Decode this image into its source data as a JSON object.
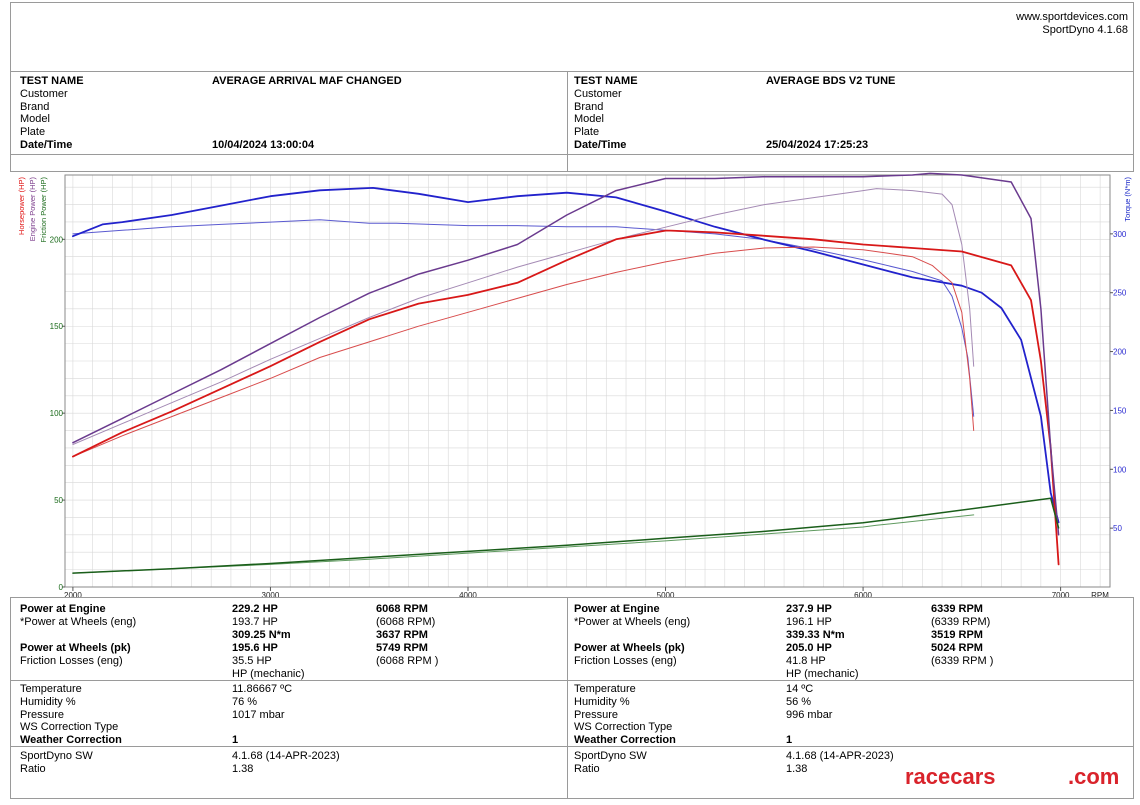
{
  "header": {
    "website": "www.sportdevices.com",
    "software": "SportDyno 4.1.68"
  },
  "tests": [
    {
      "labels": {
        "test_name": "TEST NAME",
        "customer": "Customer",
        "brand": "Brand",
        "model": "Model",
        "plate": "Plate",
        "datetime": "Date/Time"
      },
      "test_name": "AVERAGE ARRIVAL MAF CHANGED",
      "datetime": "10/04/2024 13:00:04",
      "results": {
        "power_engine_label": "Power at Engine",
        "power_engine_hp": "229.2 HP",
        "power_engine_rpm": "6068 RPM",
        "power_wheels_eng_label": "*Power at Wheels (eng)",
        "power_wheels_eng_hp": "193.7 HP",
        "power_wheels_eng_rpm": "(6068 RPM)",
        "torque": "309.25 N*m",
        "torque_rpm": "3637 RPM",
        "power_wheels_pk_label": "Power at Wheels (pk)",
        "power_wheels_pk_hp": "195.6 HP",
        "power_wheels_pk_rpm": "5749 RPM",
        "friction_label": "Friction Losses (eng)",
        "friction_hp": "35.5 HP",
        "friction_rpm": "(6068 RPM )",
        "hp_mech": "HP (mechanic)"
      },
      "conditions": {
        "temperature_label": "Temperature",
        "temperature": "11.86667 ºC",
        "humidity_label": "Humidity %",
        "humidity": "76 %",
        "pressure_label": "Pressure",
        "pressure": "1017 mbar",
        "ws_label": "WS Correction Type",
        "weather_label": "Weather Correction",
        "weather": "1"
      },
      "software": {
        "sw_label": "SportDyno SW",
        "sw": "4.1.68 (14-APR-2023)",
        "ratio_label": "Ratio",
        "ratio": "1.38"
      }
    },
    {
      "labels": {
        "test_name": "TEST NAME",
        "customer": "Customer",
        "brand": "Brand",
        "model": "Model",
        "plate": "Plate",
        "datetime": "Date/Time"
      },
      "test_name": "AVERAGE BDS V2 TUNE",
      "datetime": "25/04/2024 17:25:23",
      "results": {
        "power_engine_label": "Power at Engine",
        "power_engine_hp": "237.9 HP",
        "power_engine_rpm": "6339 RPM",
        "power_wheels_eng_label": "*Power at Wheels (eng)",
        "power_wheels_eng_hp": "196.1 HP",
        "power_wheels_eng_rpm": "(6339 RPM)",
        "torque": "339.33 N*m",
        "torque_rpm": "3519 RPM",
        "power_wheels_pk_label": "Power at Wheels (pk)",
        "power_wheels_pk_hp": "205.0 HP",
        "power_wheels_pk_rpm": "5024 RPM",
        "friction_label": "Friction Losses (eng)",
        "friction_hp": "41.8 HP",
        "friction_rpm": "(6339 RPM )",
        "hp_mech": "HP (mechanic)"
      },
      "conditions": {
        "temperature_label": "Temperature",
        "temperature": "14 ºC",
        "humidity_label": "Humidity %",
        "humidity": "56 %",
        "pressure_label": "Pressure",
        "pressure": "996 mbar",
        "ws_label": "WS Correction Type",
        "weather_label": "Weather Correction",
        "weather": "1"
      },
      "software": {
        "sw_label": "SportDyno SW",
        "sw": "4.1.68 (14-APR-2023)",
        "ratio_label": "Ratio",
        "ratio": "1.38"
      }
    }
  ],
  "logo": {
    "part1": "racecars",
    "part2": ".com"
  },
  "colors": {
    "hp": "#e01010",
    "engine_power": "#7a3a8a",
    "friction": "#1a6a1a",
    "torque": "#1a28c8",
    "grid": "#d8d8d8"
  },
  "chart_data": {
    "type": "line",
    "xlabel": "RPM",
    "xlim": [
      1960,
      7250
    ],
    "x_ticks": [
      2000,
      3000,
      4000,
      5000,
      6000,
      7000
    ],
    "ylim_left": [
      0,
      237
    ],
    "left_ticks": [
      0,
      50,
      100,
      150,
      200
    ],
    "ylim_right": [
      0,
      350
    ],
    "right_ticks": [
      50,
      100,
      150,
      200,
      250,
      300
    ],
    "left_axis_labels": [
      "Horsepower (HP)",
      "Engine Power (HP)",
      "Friction Power (HP)"
    ],
    "right_axis_label": "Torque (N*m)",
    "grid": true,
    "series": [
      {
        "test": 1,
        "axis": "right",
        "color": "#5a5ad0",
        "width": 1,
        "x": [
          2000,
          2250,
          2500,
          2750,
          3000,
          3250,
          3500,
          3637,
          4000,
          4250,
          4500,
          4750,
          5000,
          5250,
          5500,
          5750,
          6000,
          6250,
          6400,
          6450,
          6500,
          6530,
          6550,
          6560
        ],
        "y": [
          300,
          303,
          306,
          308,
          310,
          312,
          309,
          309,
          307,
          307,
          306,
          306,
          303,
          300,
          295,
          287,
          278,
          268,
          260,
          247,
          220,
          195,
          162,
          145
        ]
      },
      {
        "test": 2,
        "axis": "right",
        "color": "#2222cc",
        "width": 1.8,
        "x": [
          2000,
          2150,
          2250,
          2500,
          2750,
          3000,
          3250,
          3519,
          3750,
          4000,
          4250,
          4500,
          4750,
          5000,
          5250,
          5500,
          5750,
          6000,
          6250,
          6500,
          6600,
          6700,
          6800,
          6900,
          6950,
          6990
        ],
        "y": [
          298,
          308,
          310,
          316,
          324,
          332,
          337,
          339,
          334,
          327,
          332,
          335,
          331,
          319,
          306,
          295,
          285,
          274,
          263,
          256,
          250,
          237,
          210,
          145,
          80,
          55
        ]
      },
      {
        "test": 1,
        "axis": "left",
        "color": "#d84c4c",
        "width": 1,
        "x": [
          2000,
          2250,
          2500,
          2750,
          3000,
          3250,
          3500,
          3750,
          4000,
          4250,
          4500,
          4750,
          5000,
          5250,
          5500,
          5749,
          6000,
          6250,
          6350,
          6450,
          6500,
          6540,
          6560
        ],
        "y": [
          75,
          87,
          98,
          109,
          120,
          132,
          141,
          150,
          158,
          166,
          174,
          181,
          187,
          192,
          195,
          195.6,
          194,
          190,
          185,
          175,
          158,
          120,
          90
        ]
      },
      {
        "test": 1,
        "axis": "left",
        "color": "#a48ab4",
        "width": 1,
        "x": [
          2000,
          2250,
          2500,
          2750,
          3000,
          3250,
          3500,
          3750,
          4000,
          4250,
          4500,
          4750,
          5000,
          5250,
          5500,
          5750,
          6000,
          6068,
          6250,
          6400,
          6450,
          6500,
          6540,
          6560
        ],
        "y": [
          82,
          94,
          106,
          118,
          131,
          143,
          155,
          166,
          175,
          184,
          192,
          200,
          207,
          214,
          220,
          224,
          228,
          229.2,
          228,
          226,
          220,
          197,
          160,
          127
        ]
      },
      {
        "test": 2,
        "axis": "left",
        "color": "#d81818",
        "width": 1.8,
        "x": [
          2000,
          2250,
          2500,
          2750,
          3000,
          3250,
          3500,
          3750,
          4000,
          4250,
          4500,
          4750,
          5000,
          5024,
          5250,
          5500,
          5750,
          6000,
          6250,
          6500,
          6750,
          6850,
          6900,
          6950,
          6990
        ],
        "y": [
          75,
          89,
          101,
          114,
          127,
          141,
          154,
          163,
          168,
          175,
          188,
          200,
          205,
          205.0,
          204,
          202,
          200,
          197,
          195,
          193,
          185,
          165,
          130,
          80,
          13
        ]
      },
      {
        "test": 2,
        "axis": "left",
        "color": "#6a3a8e",
        "width": 1.5,
        "x": [
          2000,
          2250,
          2500,
          2750,
          3000,
          3250,
          3500,
          3750,
          4000,
          4250,
          4500,
          4750,
          5000,
          5250,
          5500,
          5750,
          6000,
          6250,
          6339,
          6500,
          6750,
          6850,
          6900,
          6950,
          6990
        ],
        "y": [
          83,
          97,
          111,
          125,
          140,
          155,
          169,
          180,
          188,
          197,
          214,
          228,
          235,
          235,
          236,
          236,
          236,
          237,
          237.9,
          237,
          233,
          212,
          160,
          80,
          30
        ]
      },
      {
        "test": 1,
        "axis": "left",
        "color": "#5f9a5f",
        "width": 1,
        "x": [
          2000,
          2500,
          3000,
          3500,
          4000,
          4500,
          5000,
          5500,
          6000,
          6068,
          6560
        ],
        "y": [
          8,
          10.5,
          13,
          16,
          19.5,
          23,
          26.5,
          30.5,
          34.5,
          35.5,
          41.5
        ]
      },
      {
        "test": 2,
        "axis": "left",
        "color": "#1a5e1a",
        "width": 1.5,
        "x": [
          2000,
          2500,
          3000,
          3500,
          4000,
          4500,
          5000,
          5500,
          6000,
          6339,
          6950,
          6990
        ],
        "y": [
          8,
          10.5,
          13.5,
          17,
          20.5,
          24,
          28,
          32,
          37,
          41.8,
          51,
          34
        ]
      }
    ]
  }
}
